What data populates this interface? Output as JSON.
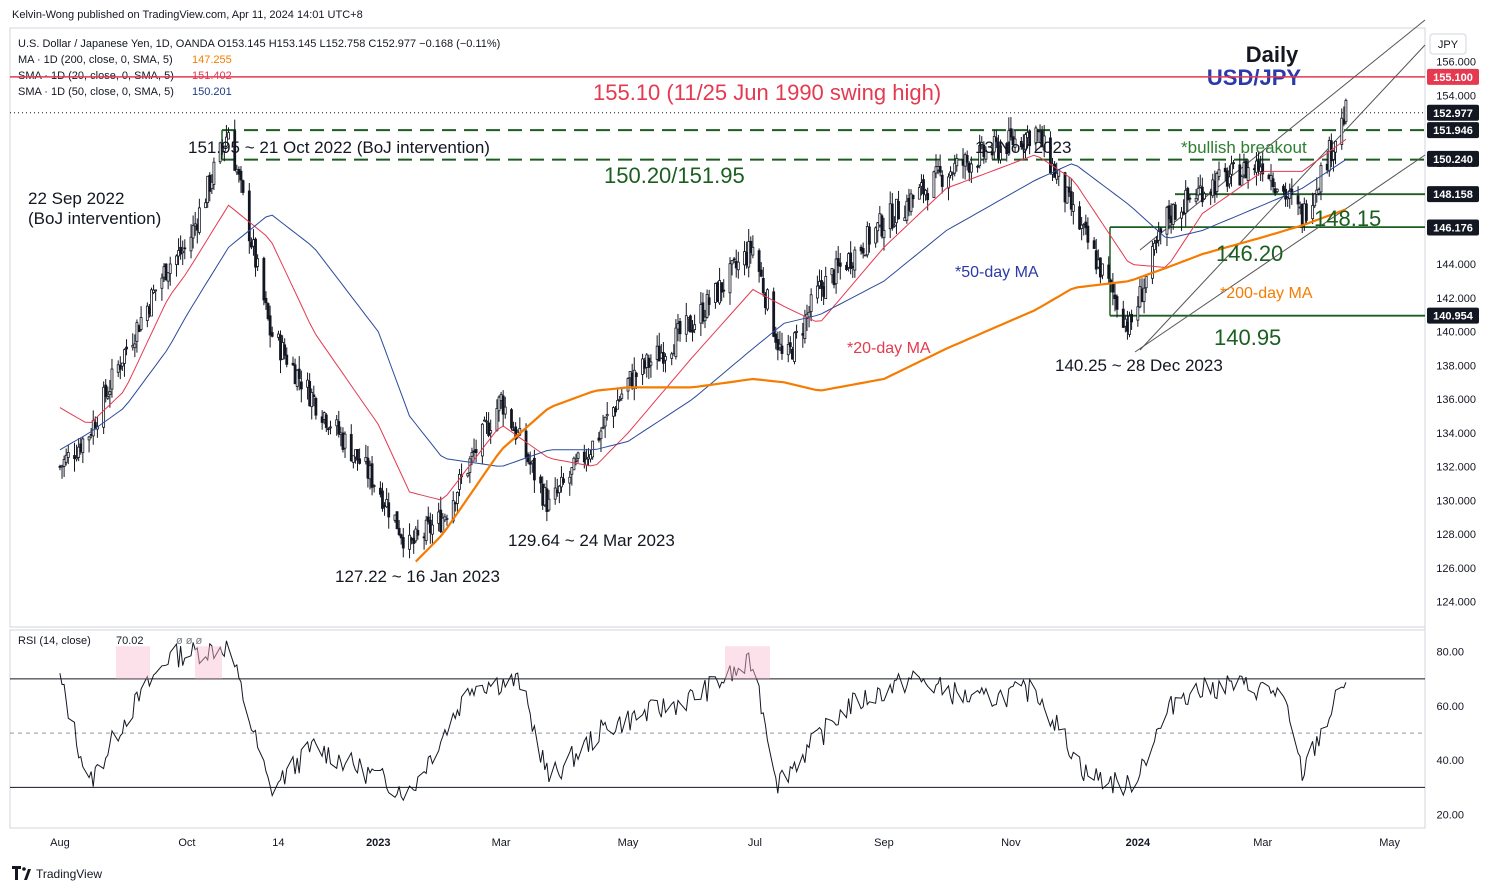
{
  "header": {
    "published_by": "Kelvin-Wong published on TradingView.com, Apr 11, 2024 14:01 UTC+8",
    "symbol_line": "U.S. Dollar / Japanese Yen, 1D, OANDA  O153.145  H153.145  L152.758  C152.977  −0.168 (−0.11%)",
    "ma_lines": [
      {
        "label": "MA · 1D (200, close, 0, SMA, 5)",
        "value": "147.255",
        "color": "#f57c00"
      },
      {
        "label": "SMA · 1D (20, close, 0, SMA, 5)",
        "value": "151.402",
        "color": "#e53950"
      },
      {
        "label": "SMA · 1D (50, close, 0, SMA, 5)",
        "value": "150.201",
        "color": "#1e3a8a"
      }
    ],
    "currency_badge": "JPY"
  },
  "footer": {
    "brand": "TradingView"
  },
  "colors": {
    "candle": "#131722",
    "ma20": "#e53950",
    "ma50": "#2a4a9a",
    "ma200": "#f57c00",
    "resistance": "#e53950",
    "support": "#1b5e20",
    "channel": "#555555",
    "rsi": "#131722"
  },
  "chart_data": [
    {
      "type": "line",
      "title": "Daily",
      "subtitle": "USD/JPY",
      "x_dates": [
        "2022-08-01",
        "2022-08-15",
        "2022-09-01",
        "2022-09-22",
        "2022-10-01",
        "2022-10-21",
        "2022-11-10",
        "2022-12-01",
        "2023-01-01",
        "2023-01-16",
        "2023-02-01",
        "2023-03-01",
        "2023-03-24",
        "2023-04-15",
        "2023-05-01",
        "2023-06-01",
        "2023-06-30",
        "2023-07-15",
        "2023-08-01",
        "2023-09-01",
        "2023-10-01",
        "2023-11-13",
        "2023-12-01",
        "2023-12-28",
        "2024-01-15",
        "2024-02-01",
        "2024-03-01",
        "2024-03-20",
        "2024-04-10"
      ],
      "series": [
        {
          "name": "USD/JPY",
          "values": [
            132.0,
            134.0,
            138.8,
            144.0,
            145.0,
            151.95,
            140.0,
            136.0,
            130.8,
            127.22,
            129.0,
            136.0,
            129.64,
            133.5,
            137.0,
            140.5,
            145.0,
            138.0,
            142.5,
            146.5,
            149.5,
            151.9,
            147.0,
            140.25,
            146.8,
            148.5,
            150.0,
            146.8,
            152.977
          ]
        },
        {
          "name": "*20-day MA",
          "values": [
            135.5,
            134.5,
            136.5,
            142.0,
            143.5,
            147.5,
            145.5,
            140.0,
            134.5,
            130.5,
            130.0,
            134.5,
            132.5,
            132.0,
            134.0,
            138.5,
            142.5,
            141.5,
            140.5,
            145.0,
            148.5,
            150.5,
            149.0,
            144.0,
            143.8,
            147.0,
            149.5,
            149.5,
            151.402
          ]
        },
        {
          "name": "*50-day MA",
          "values": [
            133.0,
            134.0,
            135.5,
            139.0,
            141.0,
            145.0,
            147.0,
            145.0,
            140.0,
            135.0,
            132.5,
            132.0,
            133.0,
            133.0,
            133.5,
            136.0,
            139.0,
            140.5,
            141.0,
            143.0,
            146.0,
            149.0,
            150.0,
            147.5,
            145.5,
            146.0,
            147.5,
            148.5,
            150.201
          ]
        },
        {
          "name": "*200-day MA",
          "values": [
            null,
            null,
            null,
            null,
            null,
            null,
            null,
            null,
            null,
            126.0,
            128.0,
            133.0,
            135.5,
            136.5,
            136.7,
            136.7,
            137.2,
            137.0,
            136.5,
            137.2,
            139.0,
            141.3,
            142.6,
            143.0,
            143.8,
            144.6,
            145.6,
            146.3,
            147.255
          ]
        }
      ],
      "y_axis_ticks": [
        "156.000",
        "154.000",
        "152.000",
        "150.000",
        "148.000",
        "146.000",
        "144.000",
        "142.000",
        "140.000",
        "138.000",
        "136.000",
        "134.000",
        "132.000",
        "130.000",
        "128.000",
        "126.000",
        "124.000"
      ],
      "ylim": [
        122.5,
        158.0
      ],
      "x_axis_ticks": [
        "Aug",
        "Oct",
        "14",
        "2023",
        "Mar",
        "May",
        "Jul",
        "Sep",
        "Nov",
        "2024",
        "Mar",
        "May"
      ],
      "price_tags": [
        {
          "value": 155.1,
          "label": "155.100",
          "style": "red"
        },
        {
          "value": 152.977,
          "label": "152.977",
          "style": "dark"
        },
        {
          "value": 151.946,
          "label": "151.946",
          "style": "dark"
        },
        {
          "value": 150.24,
          "label": "150.240",
          "style": "dark"
        },
        {
          "value": 148.158,
          "label": "148.158",
          "style": "dark"
        },
        {
          "value": 146.176,
          "label": "146.176",
          "style": "dark"
        },
        {
          "value": 140.954,
          "label": "140.954",
          "style": "dark"
        }
      ],
      "levels": [
        {
          "value": 155.1,
          "style": "resistance",
          "label": "155.10 (11/25 Jun 1990 swing high)"
        },
        {
          "value": 151.95,
          "style": "dashed-green",
          "label": "150.20/151.95"
        },
        {
          "value": 150.2,
          "style": "dashed-green",
          "label": ""
        },
        {
          "value": 148.15,
          "style": "green",
          "label": "148.15"
        },
        {
          "value": 146.2,
          "style": "green",
          "label": "146.20"
        },
        {
          "value": 140.95,
          "style": "green",
          "label": "140.95"
        }
      ],
      "annotations": [
        {
          "text": "151.95 ~ 21 Oct 2022 (BoJ intervention)"
        },
        {
          "text": "22 Sep 2022"
        },
        {
          "text": "(BoJ intervention)"
        },
        {
          "text": "13 Nov 2023"
        },
        {
          "text": "*bullish breakout"
        },
        {
          "text": "*50-day MA"
        },
        {
          "text": "*20-day MA"
        },
        {
          "text": "*200-day MA"
        },
        {
          "text": "140.25 ~ 28 Dec 2023"
        },
        {
          "text": "129.64 ~ 24 Mar 2023"
        },
        {
          "text": "127.22 ~ 16 Jan 2023"
        }
      ],
      "legend": "none",
      "grid": false
    },
    {
      "type": "line",
      "title": "RSI (14, close)",
      "value_label": "70.02",
      "extra_label": "ø ø ø",
      "x_dates": [
        "2022-08-01",
        "2022-08-15",
        "2022-09-01",
        "2022-09-22",
        "2022-10-21",
        "2022-11-10",
        "2022-12-01",
        "2023-01-16",
        "2023-02-15",
        "2023-03-10",
        "2023-03-24",
        "2023-04-20",
        "2023-06-01",
        "2023-06-30",
        "2023-07-12",
        "2023-08-15",
        "2023-09-15",
        "2023-10-15",
        "2023-11-13",
        "2023-12-07",
        "2023-12-28",
        "2024-01-20",
        "2024-02-15",
        "2024-03-10",
        "2024-03-20",
        "2024-04-10"
      ],
      "series": [
        {
          "name": "RSI",
          "values": [
            70,
            31,
            55,
            78,
            82,
            29,
            45,
            28,
            68,
            69,
            33,
            52,
            63,
            76,
            32,
            60,
            70,
            62,
            66,
            35,
            30,
            64,
            68,
            65,
            35,
            70.02
          ]
        }
      ],
      "y_axis_ticks": [
        "80.00",
        "60.00",
        "40.00",
        "20.00"
      ],
      "ylim": [
        15,
        88
      ],
      "bands": [
        70,
        50,
        30
      ]
    }
  ]
}
